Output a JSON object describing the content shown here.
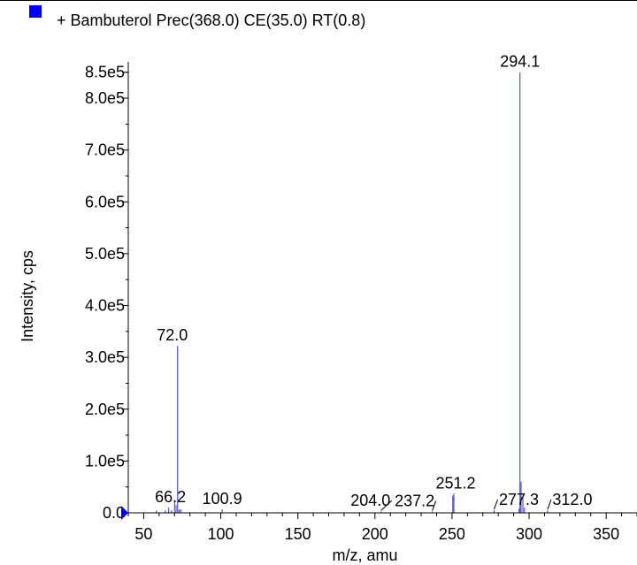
{
  "chart_data": {
    "type": "line",
    "legend": {
      "label": "+ Bambuterol Prec(368.0) CE(35.0) RT(0.8)",
      "color": "#0000ff",
      "placement": "top-left"
    },
    "xlabel": "m/z, amu",
    "ylabel": "Intensity, cps",
    "xlim": [
      40,
      370
    ],
    "ylim": [
      0,
      870000
    ],
    "x_ticks": [
      50,
      100,
      150,
      200,
      250,
      300,
      350
    ],
    "x_tick_labels": [
      "50",
      "100",
      "150",
      "200",
      "250",
      "300",
      "350"
    ],
    "y_ticks": [
      0,
      100000,
      200000,
      300000,
      400000,
      500000,
      600000,
      700000,
      800000,
      850000
    ],
    "y_tick_labels": [
      "0.0",
      "1.0e5",
      "2.0e5",
      "3.0e5",
      "4.0e5",
      "5.0e5",
      "6.0e5",
      "7.0e5",
      "8.0e5",
      "8.5e5"
    ],
    "series_color": "#3333dd",
    "peaks": [
      {
        "mz": 58.1,
        "intensity": 4000
      },
      {
        "mz": 64.0,
        "intensity": 5000
      },
      {
        "mz": 66.2,
        "intensity": 10000
      },
      {
        "mz": 68.0,
        "intensity": 5000
      },
      {
        "mz": 70.0,
        "intensity": 25000
      },
      {
        "mz": 71.0,
        "intensity": 15000
      },
      {
        "mz": 72.0,
        "intensity": 322000
      },
      {
        "mz": 73.0,
        "intensity": 6000
      },
      {
        "mz": 74.0,
        "intensity": 7000
      },
      {
        "mz": 100.9,
        "intensity": 7000
      },
      {
        "mz": 204.0,
        "intensity": 3000
      },
      {
        "mz": 237.2,
        "intensity": 2500
      },
      {
        "mz": 250.5,
        "intensity": 33000
      },
      {
        "mz": 251.2,
        "intensity": 37000
      },
      {
        "mz": 277.3,
        "intensity": 5000
      },
      {
        "mz": 293.5,
        "intensity": 8000
      },
      {
        "mz": 294.1,
        "intensity": 850000
      },
      {
        "mz": 294.8,
        "intensity": 60000
      },
      {
        "mz": 296.0,
        "intensity": 30000
      },
      {
        "mz": 297.0,
        "intensity": 10000
      },
      {
        "mz": 312.0,
        "intensity": 5000
      }
    ],
    "peak_labels": [
      {
        "text": "294.1",
        "mz": 294.1,
        "intensity": 850000,
        "dx": 0,
        "dy": -6,
        "anchor": "middle"
      },
      {
        "text": "72.0",
        "mz": 72.0,
        "intensity": 322000,
        "dx": -6,
        "dy": -6,
        "anchor": "middle"
      },
      {
        "text": "251.2",
        "mz": 251.2,
        "intensity": 37000,
        "dx": 2,
        "dy": -6,
        "anchor": "middle"
      },
      {
        "text": "66.2",
        "mz": 66.2,
        "intensity": 10000,
        "dx": 2,
        "dy": -6,
        "anchor": "middle"
      },
      {
        "text": "100.9",
        "mz": 100.9,
        "intensity": 7000,
        "dx": 0,
        "dy": -6,
        "anchor": "middle"
      },
      {
        "text": "204.0",
        "mz": 204.0,
        "intensity": 3000,
        "dx": -12,
        "dy": -6,
        "anchor": "middle",
        "leader": true
      },
      {
        "text": "237.2",
        "mz": 237.2,
        "intensity": 2500,
        "dx": -20,
        "dy": -6,
        "anchor": "middle",
        "leader": true
      },
      {
        "text": "277.3",
        "mz": 277.3,
        "intensity": 5000,
        "dx": 28,
        "dy": -6,
        "anchor": "middle",
        "leader": true
      },
      {
        "text": "312.0",
        "mz": 312.0,
        "intensity": 5000,
        "dx": 28,
        "dy": -6,
        "anchor": "middle",
        "leader": true
      }
    ]
  }
}
